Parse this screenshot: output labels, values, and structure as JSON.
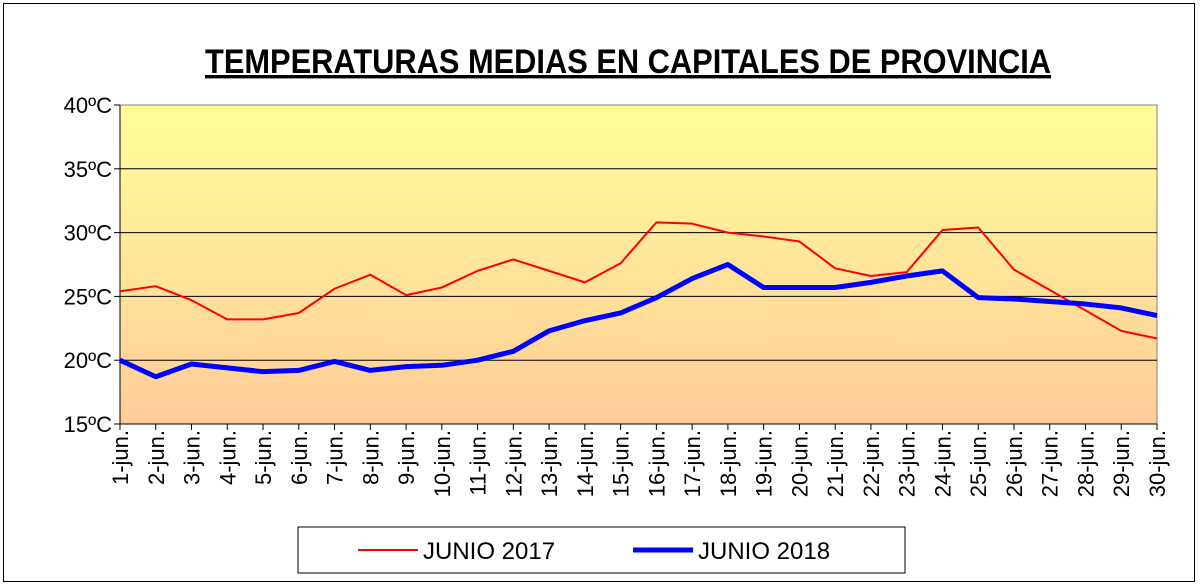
{
  "chart_data": {
    "type": "line",
    "title": "TEMPERATURAS MEDIAS EN CAPITALES DE PROVINCIA",
    "xlabel": "",
    "ylabel": "",
    "ylim": [
      15,
      40
    ],
    "yticks": [
      "15ºC",
      "20ºC",
      "25ºC",
      "30ºC",
      "35ºC",
      "40ºC"
    ],
    "ytick_values": [
      15,
      20,
      25,
      30,
      35,
      40
    ],
    "grid": true,
    "legend_position": "bottom",
    "categories": [
      "1-jun.",
      "2-jun.",
      "3-jun.",
      "4-jun.",
      "5-jun.",
      "6-jun.",
      "7-jun.",
      "8-jun.",
      "9-jun.",
      "10-jun.",
      "11-jun.",
      "12-jun.",
      "13-jun.",
      "14-jun.",
      "15-jun.",
      "16-jun.",
      "17-jun.",
      "18-jun.",
      "19-jun.",
      "20-jun.",
      "21-jun.",
      "22-jun.",
      "23-jun.",
      "24-jun.",
      "25-jun.",
      "26-jun.",
      "27-jun.",
      "28-jun.",
      "29-jun.",
      "30-jun."
    ],
    "series": [
      {
        "name": "JUNIO 2017",
        "color": "#ff0000",
        "values": [
          25.4,
          25.8,
          24.7,
          23.2,
          23.2,
          23.7,
          25.6,
          26.7,
          25.1,
          25.7,
          27.0,
          27.9,
          27.0,
          26.1,
          27.6,
          30.8,
          30.7,
          30.0,
          29.7,
          29.3,
          27.2,
          26.6,
          26.9,
          30.2,
          30.4,
          27.1,
          25.5,
          23.9,
          22.3,
          21.7
        ]
      },
      {
        "name": "JUNIO 2018",
        "color": "#0000ff",
        "values": [
          20.0,
          18.7,
          19.7,
          19.4,
          19.1,
          19.2,
          19.9,
          19.2,
          19.5,
          19.6,
          20.0,
          20.7,
          22.3,
          23.1,
          23.7,
          24.9,
          26.4,
          27.5,
          25.7,
          25.7,
          25.7,
          26.1,
          26.6,
          27.0,
          24.9,
          24.8,
          24.6,
          24.4,
          24.1,
          23.5
        ]
      }
    ]
  }
}
